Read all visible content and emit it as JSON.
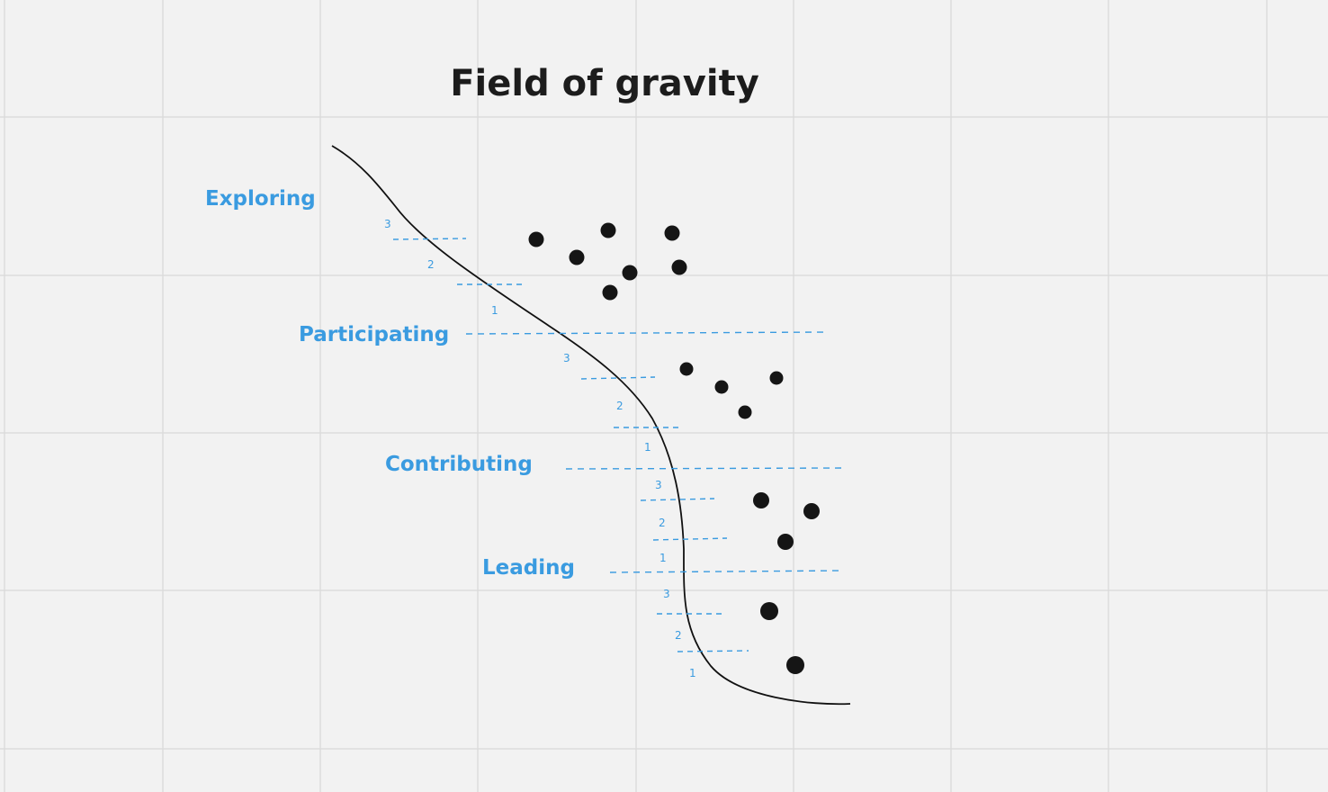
{
  "title": "Field of gravity",
  "stages": [
    {
      "label": "Exploring",
      "levels": [
        "3",
        "2",
        "1"
      ]
    },
    {
      "label": "Participating",
      "levels": [
        "3",
        "2",
        "1"
      ]
    },
    {
      "label": "Contributing",
      "levels": [
        "3",
        "2",
        "1"
      ]
    },
    {
      "label": "Leading",
      "levels": [
        "3",
        "2",
        "1"
      ]
    }
  ],
  "colors": {
    "background": "#f2f2f2",
    "grid": "#dcdcdc",
    "accent": "#3a9be0",
    "ink": "#151515"
  },
  "dot_groups": [
    {
      "stage": "Exploring",
      "count": 7
    },
    {
      "stage": "Participating",
      "count": 4
    },
    {
      "stage": "Contributing",
      "count": 3
    },
    {
      "stage": "Leading",
      "count": 2
    }
  ]
}
